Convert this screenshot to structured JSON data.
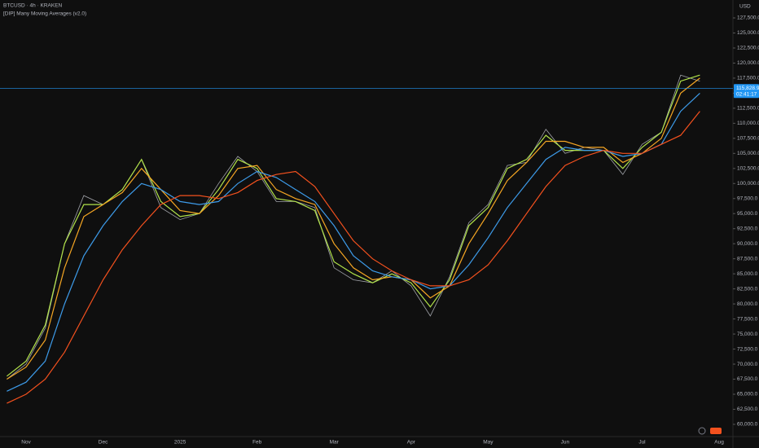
{
  "chart_data": {
    "type": "line",
    "title": "BTCUSD · 4h · KRAKEN",
    "subtitle": "[DIP] Many Moving Averages (v2.0)",
    "currency": "USD",
    "categories": [
      null,
      "Nov",
      null,
      null,
      null,
      "Dec",
      null,
      null,
      null,
      "2025",
      null,
      null,
      null,
      "Feb",
      null,
      null,
      null,
      "Mar",
      null,
      null,
      null,
      "Apr",
      null,
      null,
      null,
      "May",
      null,
      null,
      null,
      "Jun",
      null,
      null,
      null,
      "Jul",
      null,
      null,
      null,
      "Aug"
    ],
    "series": [
      {
        "color": "#d1d4dc",
        "values": [
          67500,
          70000,
          76000,
          90000,
          98000,
          96500,
          99000,
          104000,
          96000,
          94000,
          95000,
          100000,
          104500,
          102000,
          97000,
          97000,
          96000,
          86000,
          84000,
          83500,
          85500,
          83000,
          78000,
          84500,
          93500,
          96500,
          103000,
          103500,
          109000,
          105000,
          106000,
          105500,
          101500,
          106500,
          108500,
          118000,
          117000,
          null
        ]
      },
      {
        "color": "#b2e34a",
        "values": [
          68000,
          70500,
          76500,
          90000,
          96500,
          96500,
          99000,
          104000,
          97000,
          94500,
          95000,
          99000,
          104000,
          102500,
          97500,
          97000,
          95500,
          87000,
          85000,
          83500,
          85000,
          83500,
          79500,
          84000,
          93000,
          96000,
          102500,
          104000,
          108000,
          105500,
          105500,
          105500,
          102500,
          106000,
          108500,
          117000,
          118000,
          null
        ]
      },
      {
        "color": "#f5a623",
        "values": [
          67500,
          69500,
          74000,
          86000,
          94500,
          96500,
          98500,
          102500,
          99000,
          95500,
          95000,
          98000,
          102500,
          103000,
          99000,
          97500,
          96500,
          90000,
          86000,
          84000,
          84500,
          84000,
          81000,
          83000,
          90000,
          95000,
          100500,
          103500,
          107000,
          107000,
          106000,
          106000,
          103500,
          105000,
          107500,
          115000,
          117500,
          null
        ]
      },
      {
        "color": "#3d9be9",
        "values": [
          65500,
          67000,
          70500,
          80000,
          88000,
          93000,
          97000,
          100000,
          99000,
          97000,
          96500,
          97000,
          100000,
          102000,
          101000,
          99000,
          97000,
          93000,
          88000,
          85500,
          84500,
          84000,
          82500,
          83000,
          86500,
          91000,
          96000,
          100000,
          104000,
          106000,
          105500,
          105500,
          104500,
          105000,
          106500,
          112000,
          115000,
          null
        ]
      },
      {
        "color": "#f4511e",
        "values": [
          63500,
          65000,
          67500,
          72000,
          78000,
          84000,
          89000,
          93000,
          96500,
          98000,
          98000,
          97500,
          98500,
          100500,
          101500,
          102000,
          99500,
          95000,
          90500,
          87500,
          85500,
          84000,
          83000,
          83000,
          84000,
          86500,
          90500,
          95000,
          99500,
          103000,
          104500,
          105500,
          105000,
          105000,
          106500,
          108000,
          112000,
          null
        ]
      }
    ],
    "ylim": [
      58100,
      130475
    ],
    "yticks": [
      {
        "value": 60000,
        "label": "60,000.0"
      },
      {
        "value": 62500,
        "label": "62,500.0"
      },
      {
        "value": 65000,
        "label": "65,000.0"
      },
      {
        "value": 67500,
        "label": "67,500.0"
      },
      {
        "value": 70000,
        "label": "70,000.0"
      },
      {
        "value": 72500,
        "label": "72,500.0"
      },
      {
        "value": 75000,
        "label": "75,000.0"
      },
      {
        "value": 77500,
        "label": "77,500.0"
      },
      {
        "value": 80000,
        "label": "80,000.0"
      },
      {
        "value": 82500,
        "label": "82,500.0"
      },
      {
        "value": 85000,
        "label": "85,000.0"
      },
      {
        "value": 87500,
        "label": "87,500.0"
      },
      {
        "value": 90000,
        "label": "90,000.0"
      },
      {
        "value": 92500,
        "label": "92,500.0"
      },
      {
        "value": 95000,
        "label": "95,000.0"
      },
      {
        "value": 97500,
        "label": "97,500.0"
      },
      {
        "value": 100000,
        "label": "100,000.0"
      },
      {
        "value": 102500,
        "label": "102,500.0"
      },
      {
        "value": 105000,
        "label": "105,000.0"
      },
      {
        "value": 107500,
        "label": "107,500.0"
      },
      {
        "value": 110000,
        "label": "110,000.0"
      },
      {
        "value": 112500,
        "label": "112,500.0"
      },
      {
        "value": 115000,
        "label": "115,000.0"
      },
      {
        "value": 117500,
        "label": "117,500.0"
      },
      {
        "value": 120000,
        "label": "120,000.0"
      },
      {
        "value": 122500,
        "label": "122,500.0"
      },
      {
        "value": 125000,
        "label": "125,000.0"
      },
      {
        "value": 127500,
        "label": "127,500.0"
      }
    ],
    "last_price": {
      "value": 115828.9,
      "label": "115,828.9",
      "color": "#2196f3"
    },
    "countdown": "02:41:17",
    "grid": false
  }
}
